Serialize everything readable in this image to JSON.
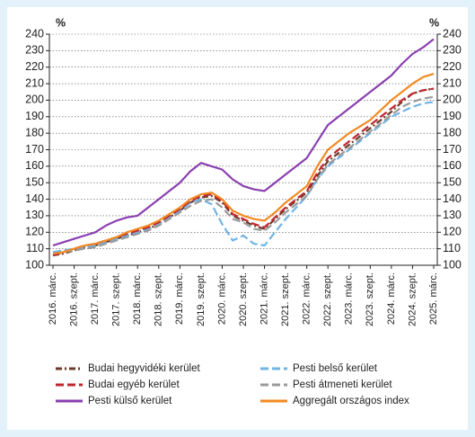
{
  "chart_data": {
    "type": "line",
    "y_label": "%",
    "y2_label": "%",
    "categories": [
      "2016. márc.",
      null,
      "2016. szept.",
      null,
      "2017. márc.",
      null,
      "2017. szept.",
      null,
      "2018. márc.",
      null,
      "2018. szept.",
      null,
      "2019. márc.",
      null,
      "2019. szept.",
      null,
      "2020. márc.",
      null,
      "2020. szept.",
      null,
      "2021. márc.",
      null,
      "2021. szept.",
      null,
      "2022. márc.",
      null,
      "2022. szept.",
      null,
      "2023. márc.",
      null,
      "2023. szept.",
      null,
      "2024. márc.",
      null,
      "2024. szept.",
      null,
      "2025. márc."
    ],
    "ylim": [
      100,
      240
    ],
    "yticks": [
      100,
      110,
      120,
      130,
      140,
      150,
      160,
      170,
      180,
      190,
      200,
      210,
      220,
      230,
      240
    ],
    "y2lim": [
      100,
      240
    ],
    "y2ticks": [
      100,
      110,
      120,
      130,
      140,
      150,
      160,
      170,
      180,
      190,
      200,
      210,
      220,
      230,
      240
    ],
    "grid": true,
    "series": [
      {
        "name": "Budai hegyvidéki kerület",
        "color": "#6b3a2a",
        "style": "dashdot",
        "values": [
          106,
          107,
          109,
          111,
          112,
          114,
          116,
          118,
          120,
          122,
          125,
          129,
          133,
          138,
          141,
          142,
          138,
          130,
          127,
          124,
          122,
          128,
          134,
          139,
          144,
          154,
          163,
          168,
          173,
          178,
          183,
          188,
          193,
          199,
          204,
          206,
          207
        ]
      },
      {
        "name": "Pesti belső kerület",
        "color": "#6fb4e6",
        "style": "dash",
        "values": [
          108,
          109,
          110,
          111,
          112,
          114,
          116,
          118,
          120,
          122,
          125,
          129,
          133,
          138,
          140,
          137,
          125,
          115,
          118,
          113,
          112,
          120,
          128,
          135,
          142,
          152,
          160,
          165,
          170,
          175,
          180,
          185,
          190,
          193,
          196,
          198,
          199
        ]
      },
      {
        "name": "Budai egyéb kerület",
        "color": "#c0272d",
        "style": "dash",
        "values": [
          106,
          108,
          110,
          112,
          113,
          115,
          117,
          119,
          121,
          123,
          126,
          130,
          134,
          139,
          142,
          143,
          139,
          131,
          128,
          125,
          123,
          129,
          135,
          140,
          145,
          156,
          165,
          170,
          175,
          180,
          185,
          190,
          195,
          200,
          204,
          206,
          207
        ]
      },
      {
        "name": "Pesti átmeneti kerület",
        "color": "#9a9a9a",
        "style": "dash",
        "values": [
          107,
          108,
          109,
          110,
          111,
          113,
          115,
          117,
          119,
          121,
          124,
          128,
          132,
          136,
          139,
          140,
          135,
          128,
          126,
          122,
          121,
          126,
          132,
          137,
          142,
          152,
          161,
          166,
          171,
          176,
          181,
          186,
          191,
          196,
          199,
          201,
          202
        ]
      },
      {
        "name": "Pesti külső kerület",
        "color": "#8a3fb0",
        "style": "solid",
        "values": [
          112,
          114,
          116,
          118,
          120,
          124,
          127,
          129,
          130,
          135,
          140,
          145,
          150,
          157,
          162,
          160,
          158,
          152,
          148,
          146,
          145,
          150,
          155,
          160,
          165,
          175,
          185,
          190,
          195,
          200,
          205,
          210,
          215,
          222,
          228,
          232,
          237
        ]
      },
      {
        "name": "Aggregált országos index",
        "color": "#f28a22",
        "style": "solid",
        "values": [
          107,
          108,
          110,
          112,
          113,
          115,
          117,
          120,
          122,
          124,
          127,
          131,
          135,
          140,
          143,
          144,
          140,
          133,
          130,
          128,
          127,
          132,
          138,
          143,
          148,
          160,
          170,
          175,
          180,
          184,
          188,
          194,
          200,
          205,
          210,
          214,
          216
        ]
      }
    ]
  }
}
